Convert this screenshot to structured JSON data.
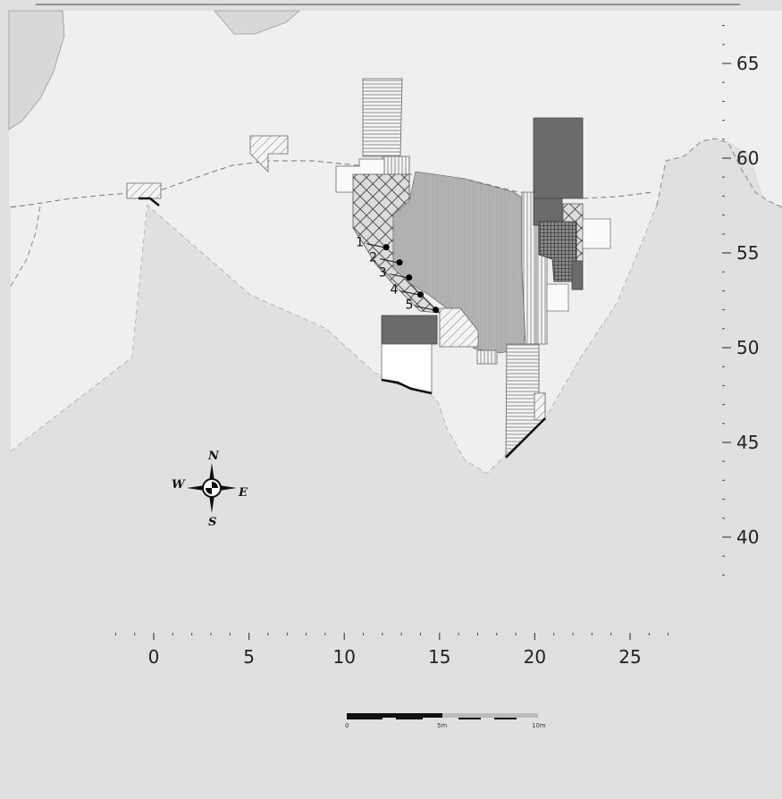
{
  "map": {
    "x_axis": {
      "ticks": [
        "0",
        "5",
        "10",
        "15",
        "20",
        "25"
      ],
      "values": [
        0,
        5,
        10,
        15,
        20,
        25
      ]
    },
    "y_axis": {
      "ticks": [
        "65",
        "60",
        "55",
        "50",
        "45",
        "40"
      ],
      "values": [
        65,
        60,
        55,
        50,
        45,
        40
      ]
    },
    "points": [
      {
        "label": "1",
        "x": 12.2,
        "y": 55.3
      },
      {
        "label": "2",
        "x": 12.9,
        "y": 54.5
      },
      {
        "label": "3",
        "x": 13.4,
        "y": 53.7
      },
      {
        "label": "4",
        "x": 14.0,
        "y": 52.8
      },
      {
        "label": "5",
        "x": 14.8,
        "y": 52.0
      }
    ],
    "compass": {
      "n": "N",
      "s": "S",
      "e": "E",
      "w": "W"
    },
    "scale_bar": {
      "labels": [
        "0",
        "5m",
        "10m"
      ]
    },
    "colors": {
      "background": "#e0e0e0",
      "light_area": "#efefef",
      "dark_fill": "#6b6b6b",
      "medium_fill": "#b3b3b3",
      "hatch": "#555555"
    }
  }
}
